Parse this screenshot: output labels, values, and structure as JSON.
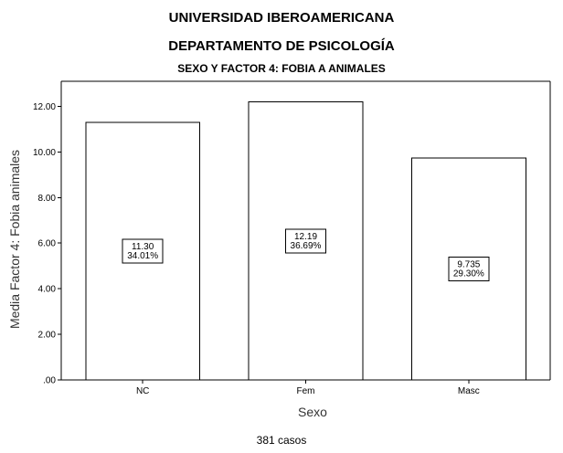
{
  "header": {
    "title": "UNIVERSIDAD IBEROAMERICANA",
    "subtitle": "DEPARTAMENTO DE PSICOLOGÍA",
    "chart_title": "SEXO Y FACTOR 4: FOBIA A ANIMALES"
  },
  "footnote": "381 casos",
  "chart_data": {
    "type": "bar",
    "title": "SEXO Y FACTOR 4: FOBIA A ANIMALES",
    "xlabel": "Sexo",
    "ylabel": "Media Factor 4: Fobia animales",
    "categories": [
      "NC",
      "Fem",
      "Masc"
    ],
    "values": [
      11.3,
      12.19,
      9.735
    ],
    "data_labels": [
      [
        "11.30",
        "34.01%"
      ],
      [
        "12.19",
        "36.69%"
      ],
      [
        "9.735",
        "29.30%"
      ]
    ],
    "ylim": [
      0,
      13.1
    ],
    "y_ticks": [
      0,
      2,
      4,
      6,
      8,
      10,
      12
    ],
    "y_tick_labels": [
      ".00",
      "2.00",
      "4.00",
      "6.00",
      "8.00",
      "10.00",
      "12.00"
    ],
    "grid": false,
    "legend": "none",
    "bar_fill": "#ffffff",
    "bar_stroke": "#000000"
  }
}
